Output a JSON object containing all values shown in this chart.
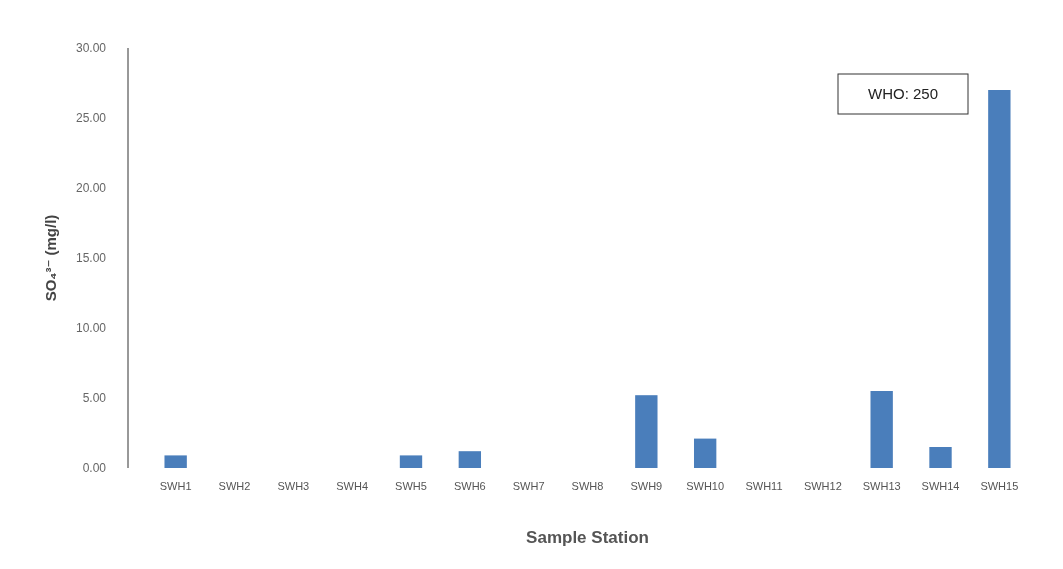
{
  "chart_data": {
    "type": "bar",
    "xlabel": "Sample Station",
    "ylabel": "SO₄³⁻ (mg/l)",
    "categories": [
      "SWH1",
      "SWH2",
      "SWH3",
      "SWH4",
      "SWH5",
      "SWH6",
      "SWH7",
      "SWH8",
      "SWH9",
      "SWH10",
      "SWH11",
      "SWH12",
      "SWH13",
      "SWH14",
      "SWH15"
    ],
    "values": [
      0.9,
      0,
      0,
      0,
      0.9,
      1.2,
      0,
      0,
      5.2,
      2.1,
      0,
      0,
      5.5,
      1.5,
      27.0
    ],
    "color": "#4a7ebb",
    "ylim": [
      0,
      30
    ],
    "yticks": [
      {
        "value": 0,
        "label": "0.00"
      },
      {
        "value": 5,
        "label": "5.00"
      },
      {
        "value": 10,
        "label": "10.00"
      },
      {
        "value": 15,
        "label": "15.00"
      },
      {
        "value": 20,
        "label": "20.00"
      },
      {
        "value": 25,
        "label": "25.00"
      },
      {
        "value": 30,
        "label": "30.00"
      }
    ],
    "annotations": [
      "WHO: 250"
    ]
  }
}
